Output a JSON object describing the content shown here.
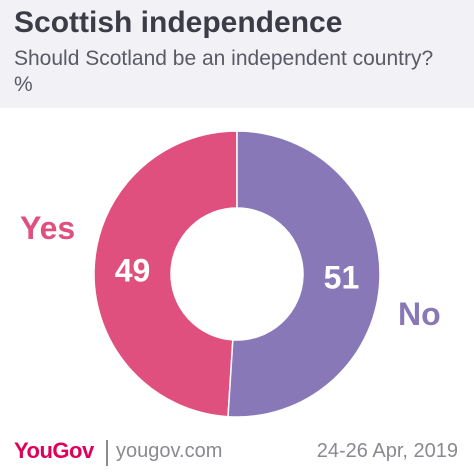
{
  "header": {
    "title": "Scottish independence",
    "subtitle": "Should Scotland be an independent country? %"
  },
  "footer": {
    "brand": "YouGov",
    "site": "yougov.com",
    "date": "24-26 Apr, 2019"
  },
  "colors": {
    "yes": "#e0507f",
    "no": "#8878b8",
    "background": "#ffffff",
    "header_background": "#f1f1f6",
    "brand": "#e0005a"
  },
  "chart_data": {
    "type": "pie",
    "donut": true,
    "categories": [
      "Yes",
      "No"
    ],
    "values": [
      49,
      51
    ],
    "value_labels": [
      "49",
      "51"
    ],
    "title": "Scottish independence",
    "subtitle": "Should Scotland be an independent country? %"
  }
}
